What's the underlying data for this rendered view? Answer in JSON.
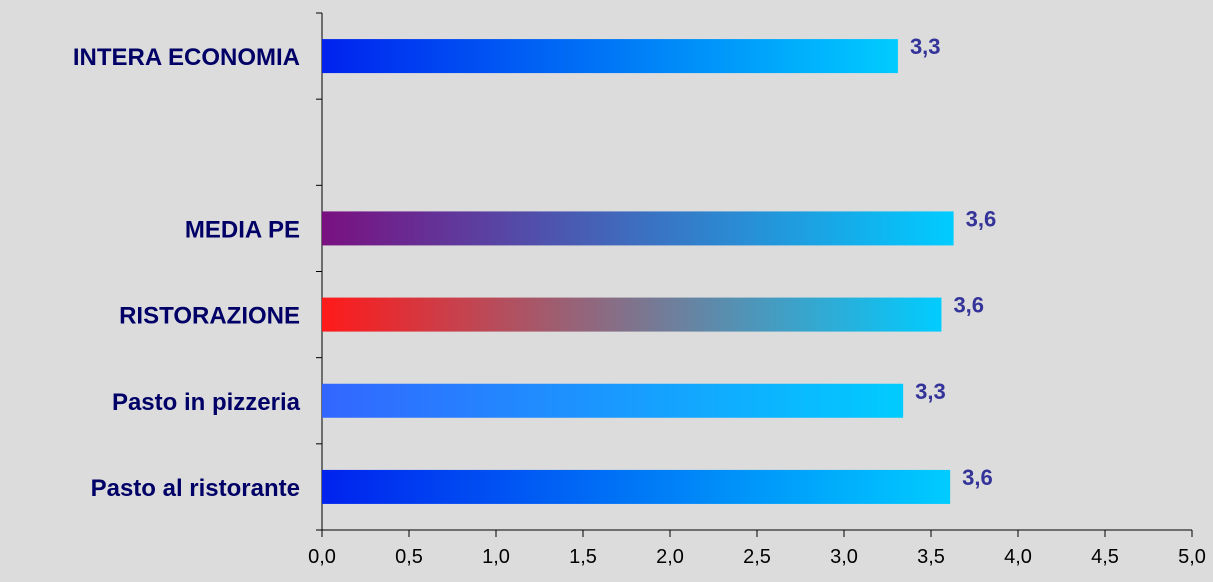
{
  "chart_data": {
    "type": "bar",
    "orientation": "horizontal",
    "categories": [
      "INTERA ECONOMIA",
      "",
      "MEDIA PE",
      "RISTORAZIONE",
      "Pasto in pizzeria",
      "Pasto al ristorante"
    ],
    "values": [
      3.31,
      null,
      3.63,
      3.56,
      3.34,
      3.61
    ],
    "value_labels": [
      "3,3",
      "",
      "3,6",
      "3,6",
      "3,3",
      "3,6"
    ],
    "xlim": [
      0,
      5
    ],
    "x_ticks": [
      "0,0",
      "0,5",
      "1,0",
      "1,5",
      "2,0",
      "2,5",
      "3,0",
      "3,5",
      "4,0",
      "4,5",
      "5,0"
    ],
    "grid": false,
    "legend": "none",
    "bar_gradients": [
      [
        "#0022ee",
        "#00ccff"
      ],
      null,
      [
        "#7a1080",
        "#00ccff"
      ],
      [
        "#ff1a1a",
        "#00ccff"
      ],
      [
        "#3366ff",
        "#00ccff"
      ],
      [
        "#0022ee",
        "#00ccff"
      ]
    ],
    "colors": {
      "background": "#dcdcdc",
      "category_text": "#000066",
      "value_text": "#333399",
      "axis": "#000000"
    }
  }
}
